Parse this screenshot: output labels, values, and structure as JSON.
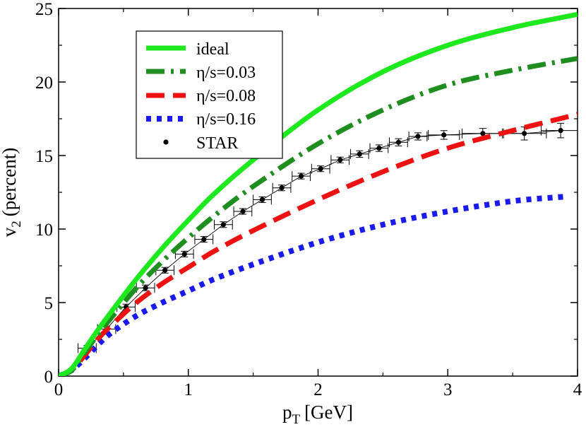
{
  "chart_data": {
    "type": "line",
    "title": "",
    "xlabel": "p",
    "xlabel_sub": "T",
    "xlabel_unit": "[GeV]",
    "ylabel": "v",
    "ylabel_sub": "2",
    "ylabel_unit": "(percent)",
    "xlim": [
      0,
      4
    ],
    "ylim": [
      0,
      25
    ],
    "xticks": [
      0,
      1,
      2,
      3,
      4
    ],
    "yticks": [
      0,
      5,
      10,
      15,
      20,
      25
    ],
    "x_tick_labels": [
      "0",
      "1",
      "2",
      "3",
      "4"
    ],
    "y_tick_labels": [
      "0",
      "5",
      "10",
      "15",
      "20",
      "25"
    ],
    "grid": false,
    "legend_position": "top-left",
    "series": [
      {
        "name": "ideal",
        "label": "ideal",
        "style": "solid",
        "color": "#1ee81e",
        "x": [
          0,
          0.1,
          0.2,
          0.3,
          0.4,
          0.6,
          0.8,
          1.0,
          1.2,
          1.5,
          2.0,
          2.5,
          3.0,
          3.5,
          4.0
        ],
        "y": [
          0,
          0.5,
          1.8,
          3.1,
          4.3,
          6.6,
          8.7,
          10.6,
          12.4,
          14.7,
          18.1,
          20.7,
          22.5,
          23.7,
          24.6
        ]
      },
      {
        "name": "eta-s-0.03",
        "label": "η/s=0.03",
        "style": "dashdot",
        "color": "#1e8f1e",
        "x": [
          0,
          0.1,
          0.2,
          0.3,
          0.4,
          0.6,
          0.8,
          1.0,
          1.2,
          1.5,
          2.0,
          2.5,
          3.0,
          3.5,
          4.0
        ],
        "y": [
          0,
          0.4,
          1.6,
          2.8,
          3.9,
          6.0,
          7.8,
          9.4,
          10.9,
          12.9,
          15.8,
          18.1,
          19.8,
          20.8,
          21.6
        ]
      },
      {
        "name": "eta-s-0.08",
        "label": "η/s=0.08",
        "style": "dashed",
        "color": "#ee1111",
        "x": [
          0,
          0.1,
          0.2,
          0.3,
          0.4,
          0.6,
          0.8,
          1.0,
          1.2,
          1.5,
          2.0,
          2.5,
          3.0,
          3.5,
          4.0
        ],
        "y": [
          0,
          0.4,
          1.4,
          2.5,
          3.4,
          5.0,
          6.3,
          7.4,
          8.5,
          9.9,
          12.0,
          13.9,
          15.5,
          16.7,
          17.8
        ]
      },
      {
        "name": "eta-s-0.16",
        "label": "η/s=0.16",
        "style": "dotted",
        "color": "#1a1aee",
        "x": [
          0,
          0.1,
          0.2,
          0.3,
          0.4,
          0.6,
          0.8,
          1.0,
          1.2,
          1.5,
          2.0,
          2.5,
          3.0,
          3.5,
          3.9
        ],
        "y": [
          0,
          0.4,
          1.2,
          2.1,
          2.9,
          4.1,
          5.0,
          5.8,
          6.6,
          7.6,
          9.1,
          10.3,
          11.2,
          11.9,
          12.2
        ]
      }
    ],
    "data_points": {
      "name": "STAR",
      "label": "STAR",
      "color": "#000000",
      "x": [
        0.22,
        0.37,
        0.52,
        0.67,
        0.82,
        0.97,
        1.12,
        1.27,
        1.42,
        1.57,
        1.72,
        1.87,
        2.02,
        2.17,
        2.32,
        2.47,
        2.62,
        2.77,
        2.97,
        3.27,
        3.59,
        3.87
      ],
      "y": [
        1.9,
        3.2,
        4.7,
        6.0,
        7.2,
        8.3,
        9.3,
        10.3,
        11.2,
        12.0,
        12.8,
        13.6,
        14.1,
        14.7,
        15.1,
        15.5,
        15.9,
        16.3,
        16.4,
        16.5,
        16.5,
        16.7
      ],
      "xerr": [
        0.07,
        0.07,
        0.07,
        0.07,
        0.07,
        0.07,
        0.07,
        0.07,
        0.07,
        0.07,
        0.07,
        0.07,
        0.07,
        0.07,
        0.07,
        0.07,
        0.07,
        0.07,
        0.12,
        0.16,
        0.17,
        0.15
      ],
      "yerr": [
        0.05,
        0.05,
        0.05,
        0.05,
        0.05,
        0.05,
        0.05,
        0.05,
        0.05,
        0.05,
        0.05,
        0.05,
        0.05,
        0.05,
        0.08,
        0.08,
        0.1,
        0.1,
        0.15,
        0.2,
        0.3,
        0.35
      ]
    }
  }
}
